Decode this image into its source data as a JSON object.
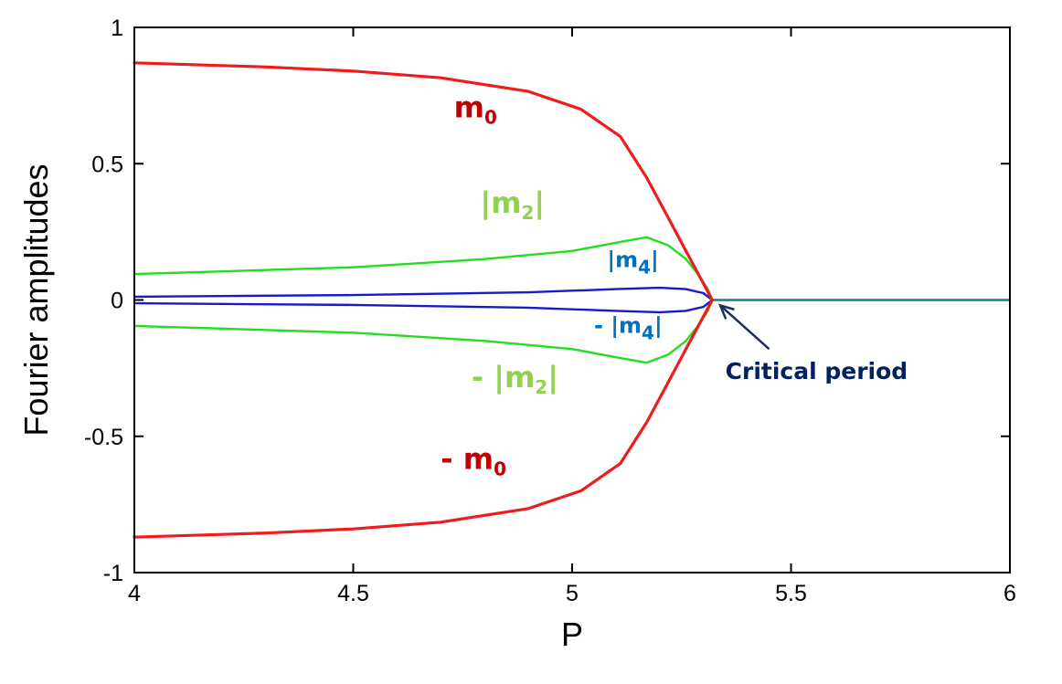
{
  "chart_data": {
    "type": "line",
    "title": "",
    "xlabel": "P",
    "ylabel": "Fourier amplitudes",
    "xlim": [
      4,
      6
    ],
    "ylim": [
      -1,
      1
    ],
    "grid": false,
    "x_ticks": [
      {
        "value": 4,
        "label": "4"
      },
      {
        "value": 4.5,
        "label": "4.5"
      },
      {
        "value": 5,
        "label": "5"
      },
      {
        "value": 5.5,
        "label": "5.5"
      },
      {
        "value": 6,
        "label": "6"
      }
    ],
    "y_ticks": [
      {
        "value": 1,
        "label": "1"
      },
      {
        "value": 0.5,
        "label": "0.5"
      },
      {
        "value": 0,
        "label": "0"
      },
      {
        "value": -0.5,
        "label": "-0.5"
      },
      {
        "value": -1,
        "label": "-1"
      }
    ],
    "series": [
      {
        "name": "m0",
        "color": "#ee1c1c",
        "x": [
          4.0,
          4.1,
          4.3,
          4.5,
          4.7,
          4.9,
          5.02,
          5.11,
          5.17,
          5.22,
          5.26,
          5.29,
          5.31,
          5.32
        ],
        "y": [
          0.87,
          0.865,
          0.855,
          0.84,
          0.815,
          0.765,
          0.7,
          0.6,
          0.45,
          0.3,
          0.18,
          0.09,
          0.03,
          0.0
        ]
      },
      {
        "name": "- m0",
        "color": "#ee1c1c",
        "x": [
          4.0,
          4.1,
          4.3,
          4.5,
          4.7,
          4.9,
          5.02,
          5.11,
          5.17,
          5.22,
          5.26,
          5.29,
          5.31,
          5.32
        ],
        "y": [
          -0.87,
          -0.865,
          -0.855,
          -0.84,
          -0.815,
          -0.765,
          -0.7,
          -0.6,
          -0.45,
          -0.3,
          -0.18,
          -0.09,
          -0.03,
          0.0
        ]
      },
      {
        "name": "|m2|",
        "color": "#22dd22",
        "x": [
          4.0,
          4.2,
          4.5,
          4.8,
          5.0,
          5.1,
          5.17,
          5.22,
          5.26,
          5.29,
          5.31,
          5.32
        ],
        "y": [
          0.095,
          0.105,
          0.12,
          0.15,
          0.18,
          0.21,
          0.23,
          0.2,
          0.15,
          0.09,
          0.04,
          0.0
        ]
      },
      {
        "name": "- |m2|",
        "color": "#22dd22",
        "x": [
          4.0,
          4.2,
          4.5,
          4.8,
          5.0,
          5.1,
          5.17,
          5.22,
          5.26,
          5.29,
          5.31,
          5.32
        ],
        "y": [
          -0.095,
          -0.105,
          -0.12,
          -0.15,
          -0.18,
          -0.21,
          -0.23,
          -0.2,
          -0.15,
          -0.09,
          -0.04,
          0.0
        ]
      },
      {
        "name": "|m4|",
        "color": "#1a1acc",
        "x": [
          4.0,
          4.5,
          4.9,
          5.1,
          5.2,
          5.26,
          5.3,
          5.32
        ],
        "y": [
          0.012,
          0.018,
          0.028,
          0.04,
          0.045,
          0.04,
          0.025,
          0.0
        ]
      },
      {
        "name": "- |m4|",
        "color": "#1a1acc",
        "x": [
          4.0,
          4.5,
          4.9,
          5.1,
          5.2,
          5.26,
          5.3,
          5.32
        ],
        "y": [
          -0.012,
          -0.018,
          -0.028,
          -0.04,
          -0.045,
          -0.04,
          -0.025,
          0.0
        ]
      },
      {
        "name": "zero",
        "color": "#1a7a8a",
        "x": [
          5.32,
          6.0
        ],
        "y": [
          0.0,
          0.0
        ]
      }
    ],
    "annotations": [
      {
        "base": "m",
        "sub": "0",
        "pre": "",
        "bar": false,
        "color": "#c00000",
        "x": 4.73,
        "y": 0.67
      },
      {
        "base": "m",
        "sub": "2",
        "pre": "",
        "bar": true,
        "color": "#92d050",
        "x": 4.79,
        "y": 0.32
      },
      {
        "base": "m",
        "sub": "4",
        "pre": "",
        "bar": true,
        "color": "#0070c0",
        "x": 5.08,
        "y": 0.12
      },
      {
        "base": "m",
        "sub": "4",
        "pre": "- ",
        "bar": true,
        "color": "#0070c0",
        "x": 5.05,
        "y": -0.12
      },
      {
        "base": "m",
        "sub": "2",
        "pre": "- ",
        "bar": true,
        "color": "#92d050",
        "x": 4.77,
        "y": -0.32
      },
      {
        "base": "m",
        "sub": "0",
        "pre": "- ",
        "bar": false,
        "color": "#c00000",
        "x": 4.7,
        "y": -0.62
      }
    ],
    "critical_label": {
      "text": "Critical period",
      "color": "#002060"
    }
  }
}
